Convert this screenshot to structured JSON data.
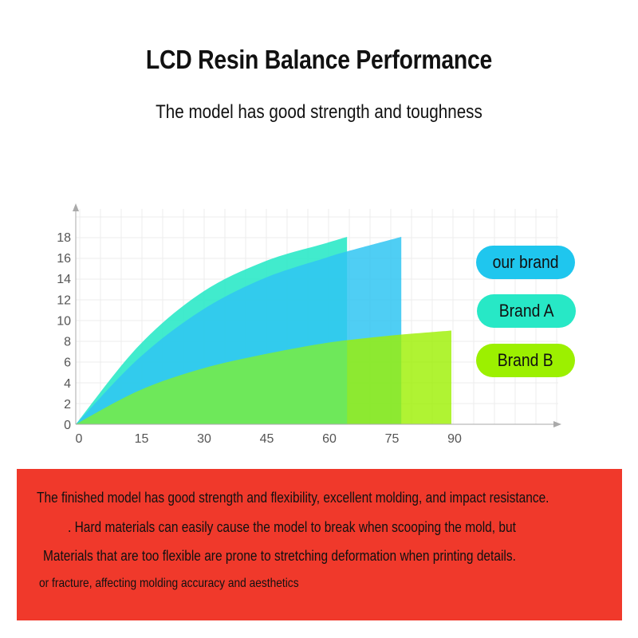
{
  "header": {
    "title": "LCD Resin Balance Performance",
    "subtitle": "The model has good strength and toughness"
  },
  "legend": [
    {
      "label": "our brand",
      "color": "#1fc6ee"
    },
    {
      "label": "Brand A",
      "color": "#27e8c6"
    },
    {
      "label": "Brand B",
      "color": "#9cf000"
    }
  ],
  "chart_data": {
    "type": "area",
    "xlim": [
      0,
      90
    ],
    "ylim": [
      0,
      18
    ],
    "x_ticks": [
      0,
      15,
      30,
      45,
      60,
      75,
      90
    ],
    "y_ticks": [
      0,
      2,
      4,
      6,
      8,
      10,
      12,
      14,
      16,
      18
    ],
    "grid": true,
    "legend_position": "right",
    "series": [
      {
        "color": "#27e8c6",
        "x": [
          0,
          15,
          30,
          45,
          60,
          65
        ],
        "y": [
          0,
          7.5,
          12.6,
          15.6,
          17.4,
          18
        ]
      },
      {
        "color": "#30c5f2",
        "x": [
          0,
          15,
          30,
          45,
          60,
          65,
          78
        ],
        "y": [
          0,
          6.3,
          10.9,
          14.0,
          16.0,
          16.6,
          18
        ]
      },
      {
        "color": "#9cf000",
        "x": [
          0,
          15,
          30,
          45,
          60,
          75,
          90
        ],
        "y": [
          0,
          3.2,
          5.3,
          6.7,
          7.8,
          8.5,
          9
        ]
      },
      {
        "color": "#6ee85a",
        "x": [
          0,
          15,
          30,
          45,
          60,
          65
        ],
        "y": [
          0,
          3.2,
          5.3,
          6.7,
          7.8,
          8.0
        ]
      }
    ]
  },
  "panel": {
    "lines": [
      "The finished model has good strength and flexibility, excellent molding, and impact resistance.",
      ". Hard materials can easily cause the model to break when scooping the mold, but",
      "Materials that are too flexible are prone to stretching deformation when printing details.",
      "or fracture, affecting molding accuracy and aesthetics"
    ]
  }
}
